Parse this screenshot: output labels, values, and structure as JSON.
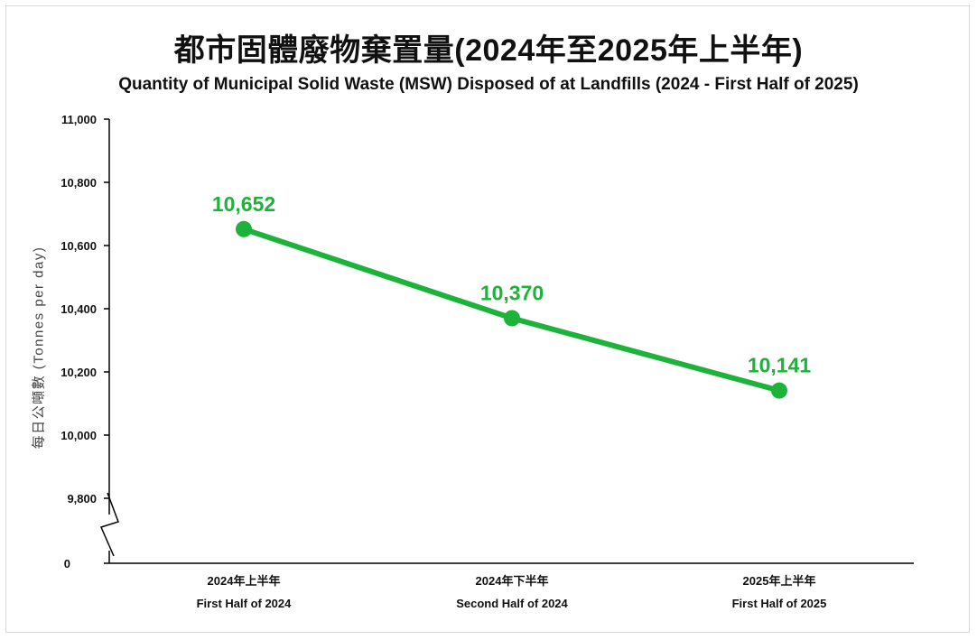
{
  "chart_data": {
    "type": "line",
    "title": "都市固體廢物棄置量(2024年至2025年上半年)",
    "subtitle": "Quantity of Municipal Solid Waste (MSW) Disposed of at Landfills (2024 - First Half of 2025)",
    "ylabel": "每日公噸數 (Tonnes per day)",
    "categories": [
      {
        "zh": "2024年上半年",
        "en": "First Half of 2024"
      },
      {
        "zh": "2024年下半年",
        "en": "Second Half of 2024"
      },
      {
        "zh": "2025年上半年",
        "en": "First Half of 2025"
      }
    ],
    "values": [
      10652,
      10370,
      10141
    ],
    "data_labels": [
      "10,652",
      "10,370",
      "10,141"
    ],
    "yticks": [
      {
        "value": 11000,
        "label": "11,000"
      },
      {
        "value": 10800,
        "label": "10,800"
      },
      {
        "value": 10600,
        "label": "10,600"
      },
      {
        "value": 10400,
        "label": "10,400"
      },
      {
        "value": 10200,
        "label": "10,200"
      },
      {
        "value": 10000,
        "label": "10,000"
      },
      {
        "value": 9800,
        "label": "9,800"
      }
    ],
    "ylim": [
      9800,
      11000
    ],
    "y_axis_break": true,
    "y_origin_label": "0",
    "line_color": "#1db33a",
    "grid": false,
    "legend": "none"
  }
}
